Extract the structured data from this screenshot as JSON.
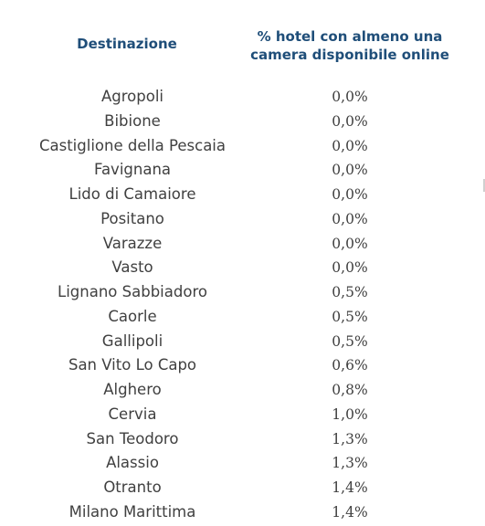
{
  "table": {
    "headers": {
      "destination": "Destinazione",
      "percentage": "% hotel con almeno una\ncamera disponibile online"
    },
    "rows": [
      {
        "destination": "Agropoli",
        "value": "0,0%"
      },
      {
        "destination": "Bibione",
        "value": "0,0%"
      },
      {
        "destination": "Castiglione della Pescaia",
        "value": "0,0%"
      },
      {
        "destination": "Favignana",
        "value": "0,0%"
      },
      {
        "destination": "Lido di Camaiore",
        "value": "0,0%"
      },
      {
        "destination": "Positano",
        "value": "0,0%"
      },
      {
        "destination": "Varazze",
        "value": "0,0%"
      },
      {
        "destination": "Vasto",
        "value": "0,0%"
      },
      {
        "destination": "Lignano Sabbiadoro",
        "value": "0,5%"
      },
      {
        "destination": "Caorle",
        "value": "0,5%"
      },
      {
        "destination": "Gallipoli",
        "value": "0,5%"
      },
      {
        "destination": "San Vito Lo Capo",
        "value": "0,6%"
      },
      {
        "destination": "Alghero",
        "value": "0,8%"
      },
      {
        "destination": "Cervia",
        "value": "1,0%"
      },
      {
        "destination": "San Teodoro",
        "value": "1,3%"
      },
      {
        "destination": "Alassio",
        "value": "1,3%"
      },
      {
        "destination": "Otranto",
        "value": "1,4%"
      },
      {
        "destination": "Milano Marittima",
        "value": "1,4%"
      }
    ]
  },
  "colors": {
    "header_text": "#1f4e79",
    "body_text": "#404040"
  }
}
